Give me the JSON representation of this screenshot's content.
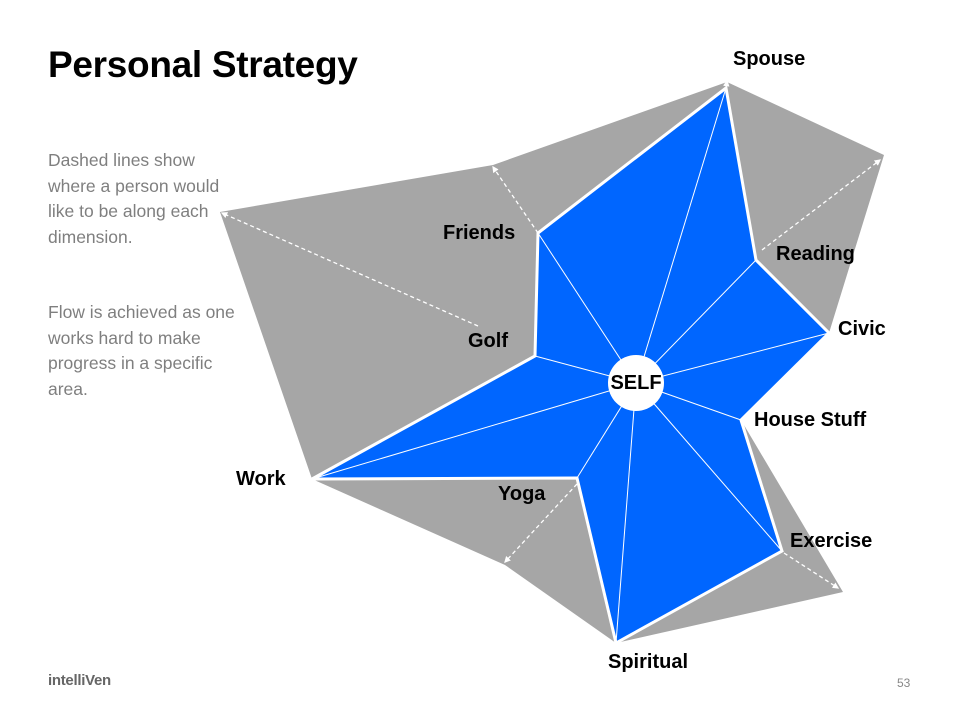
{
  "slide": {
    "title": "Personal Strategy",
    "description": [
      "Dashed lines show where a person would like to be along each dimension.",
      "Flow is achieved as one works hard to make progress in a specific area."
    ],
    "logo": "intelliVen",
    "page_number": "53"
  },
  "diagram": {
    "center_label": "SELF",
    "dimensions": [
      "Spouse",
      "Reading",
      "Civic",
      "House Stuff",
      "Exercise",
      "Spiritual",
      "Yoga",
      "Work",
      "Golf",
      "Friends"
    ],
    "colors": {
      "current": "#0066FF",
      "desired": "#A6A6A6",
      "lines": "#FFFFFF"
    }
  }
}
